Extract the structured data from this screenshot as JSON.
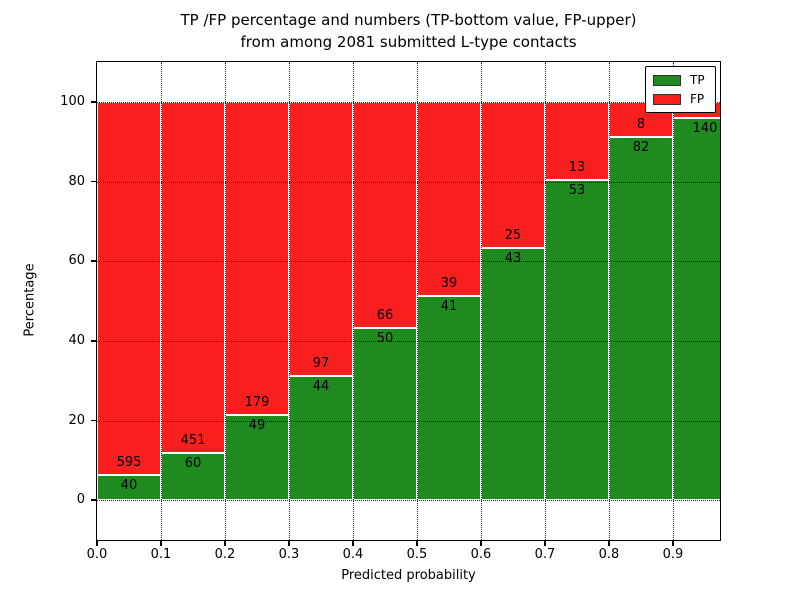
{
  "figure": {
    "title_line1": "TP /FP percentage and numbers (TP-bottom value, FP-upper)",
    "title_line2": "from among 2081 submitted L-type contacts"
  },
  "colors": {
    "tp_green": "#1f8a1f",
    "fp_red": "#fa1f1f",
    "bar_edge": "#ffffff",
    "axis_text": "#000000",
    "background": "#ffffff"
  },
  "chart_data": {
    "type": "bar",
    "stacked": true,
    "normalized_to_percent": true,
    "title": "TP /FP percentage and numbers (TP-bottom value, FP-upper) from among 2081 submitted L-type contacts",
    "xlabel": "Predicted probability",
    "ylabel": "Percentage",
    "total_contacts_in_title": 2081,
    "x_tick_labels": [
      "0.0",
      "0.1",
      "0.2",
      "0.3",
      "0.4",
      "0.5",
      "0.6",
      "0.7",
      "0.8",
      "0.9"
    ],
    "y_ticks": [
      0,
      20,
      40,
      60,
      80,
      100
    ],
    "ylim": [
      -10,
      110
    ],
    "grid": true,
    "legend_position": "upper-right",
    "legend": [
      {
        "label": "TP",
        "color": "#1f8a1f"
      },
      {
        "label": "FP",
        "color": "#fa1f1f"
      }
    ],
    "bin_width": 0.1,
    "series_note": "Each bar stacks TP (green, bottom) and FP (red, top) to 100%; printed numbers are raw counts (TP lower number, FP upper number). FP count of last bar is hidden behind the legend.",
    "bars": [
      {
        "x_start": 0.0,
        "tp": 40,
        "fp": 595,
        "tp_pct": 6.3
      },
      {
        "x_start": 0.1,
        "tp": 60,
        "fp": 451,
        "tp_pct": 11.74
      },
      {
        "x_start": 0.2,
        "tp": 49,
        "fp": 179,
        "tp_pct": 21.49
      },
      {
        "x_start": 0.3,
        "tp": 44,
        "fp": 97,
        "tp_pct": 31.21
      },
      {
        "x_start": 0.4,
        "tp": 50,
        "fp": 66,
        "tp_pct": 43.1
      },
      {
        "x_start": 0.5,
        "tp": 41,
        "fp": 39,
        "tp_pct": 51.25
      },
      {
        "x_start": 0.6,
        "tp": 43,
        "fp": 25,
        "tp_pct": 63.24
      },
      {
        "x_start": 0.7,
        "tp": 53,
        "fp": 13,
        "tp_pct": 80.3
      },
      {
        "x_start": 0.8,
        "tp": 82,
        "fp": 8,
        "tp_pct": 91.11
      },
      {
        "x_start": 0.9,
        "tp": 140,
        "fp": null,
        "tp_pct": 95.89
      }
    ]
  }
}
